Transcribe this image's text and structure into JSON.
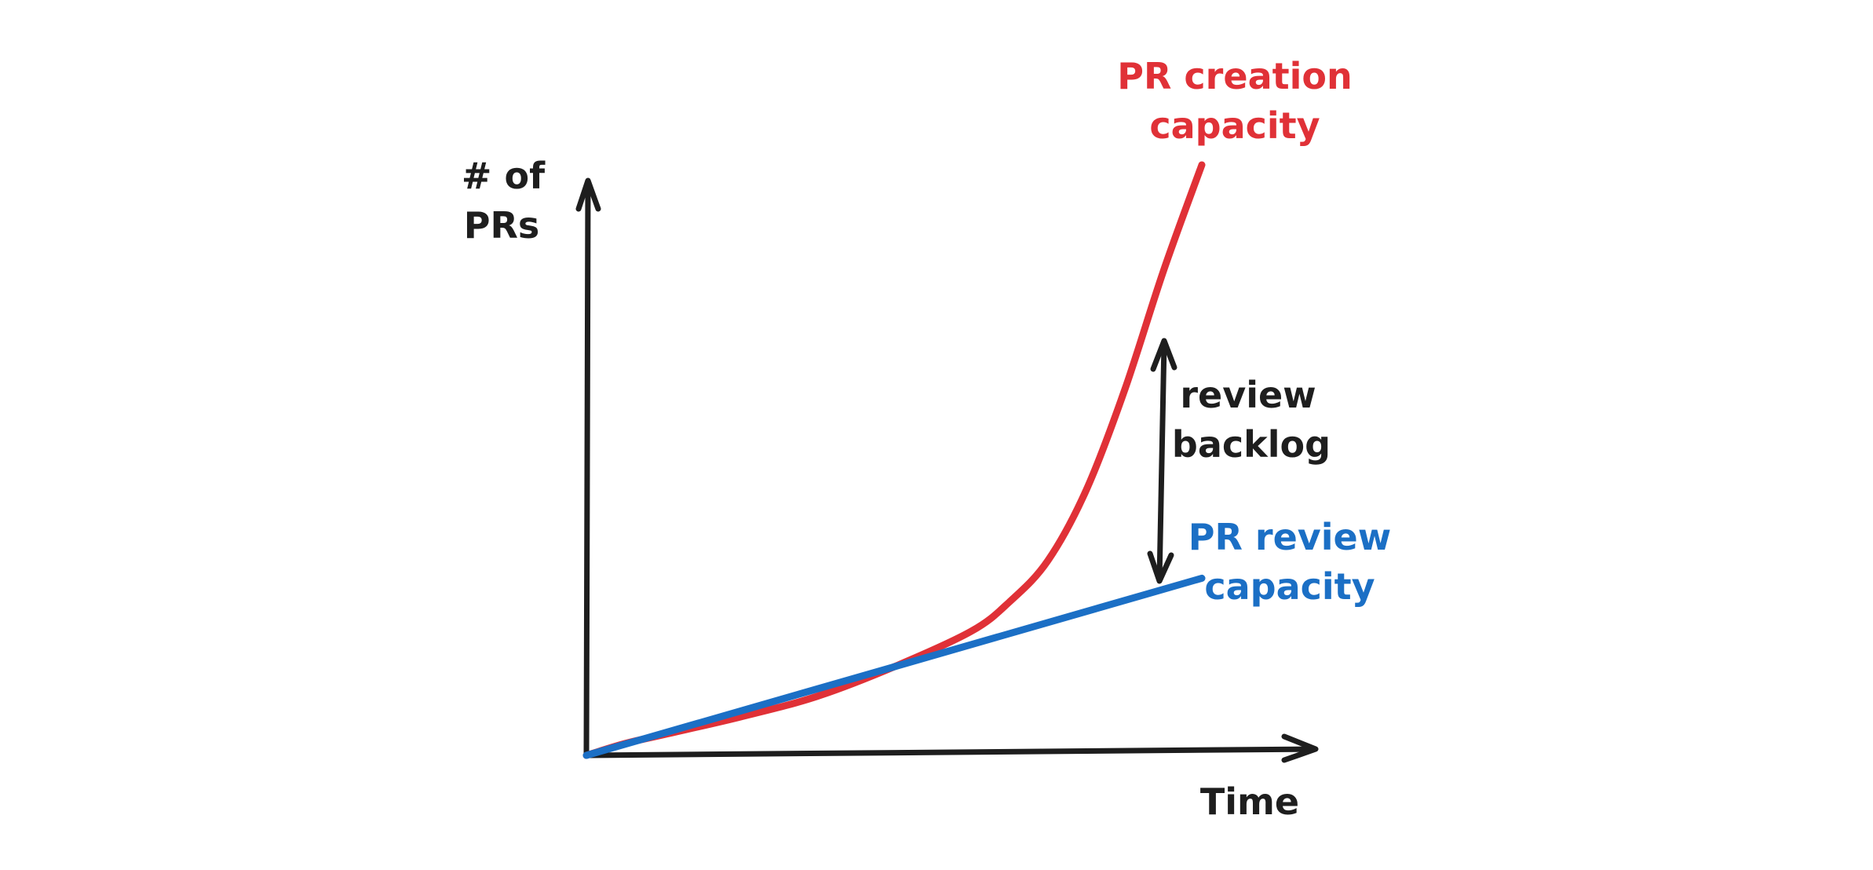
{
  "chart_data": {
    "type": "line",
    "title": "",
    "xlabel": "Time",
    "ylabel_lines": [
      "# of",
      "PRs"
    ],
    "grid": false,
    "series": [
      {
        "name_lines": [
          "PR creation",
          "capacity"
        ],
        "color": "#e03137",
        "shape": "exponential",
        "points": [
          [
            0,
            0
          ],
          [
            0.05,
            0.02
          ],
          [
            0.1,
            0.035
          ],
          [
            0.2,
            0.065
          ],
          [
            0.3,
            0.1
          ],
          [
            0.4,
            0.15
          ],
          [
            0.5,
            0.21
          ],
          [
            0.55,
            0.26
          ],
          [
            0.6,
            0.33
          ],
          [
            0.65,
            0.45
          ],
          [
            0.7,
            0.62
          ],
          [
            0.75,
            0.82
          ],
          [
            0.8,
            1.0
          ]
        ]
      },
      {
        "name_lines": [
          "PR review",
          "capacity"
        ],
        "color": "#1b6fc5",
        "shape": "linear",
        "points": [
          [
            0,
            0
          ],
          [
            0.8,
            0.3
          ]
        ]
      }
    ],
    "annotation": {
      "text_lines": [
        "review",
        "backlog"
      ],
      "color": "#1e1e1e"
    }
  }
}
